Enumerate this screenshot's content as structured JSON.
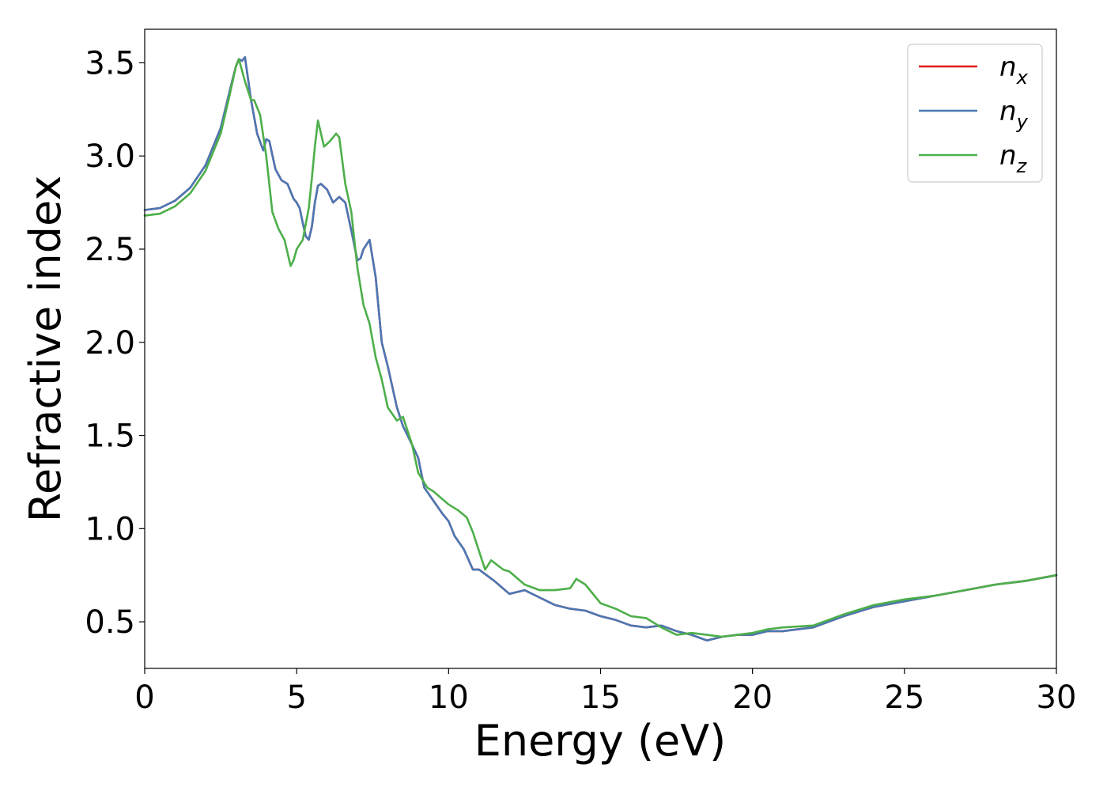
{
  "chart_data": {
    "type": "line",
    "title": "",
    "xlabel": "Energy (eV)",
    "ylabel": "Refractive index",
    "xlim": [
      0,
      30
    ],
    "ylim": [
      0.25,
      3.68
    ],
    "xticks": [
      0,
      5,
      10,
      15,
      20,
      25,
      30
    ],
    "xtick_labels": [
      "0",
      "5",
      "10",
      "15",
      "20",
      "25",
      "30"
    ],
    "yticks": [
      0.5,
      1.0,
      1.5,
      2.0,
      2.5,
      3.0,
      3.5
    ],
    "ytick_labels": [
      "0.5",
      "1.0",
      "1.5",
      "2.0",
      "2.5",
      "3.0",
      "3.5"
    ],
    "grid": false,
    "legend_position": "top-right",
    "series": [
      {
        "name": "n_x",
        "label_base": "n",
        "label_sub": "x",
        "color": "#e41a1c",
        "x": [
          0,
          0.5,
          1.0,
          1.5,
          2.0,
          2.5,
          2.8,
          3.0,
          3.1,
          3.2,
          3.3,
          3.5,
          3.7,
          3.9,
          4.0,
          4.1,
          4.3,
          4.5,
          4.7,
          4.9,
          5.0,
          5.1,
          5.2,
          5.3,
          5.4,
          5.5,
          5.6,
          5.7,
          5.8,
          6.0,
          6.2,
          6.4,
          6.6,
          6.8,
          7.0,
          7.1,
          7.2,
          7.4,
          7.6,
          7.8,
          8.0,
          8.3,
          8.5,
          8.8,
          9.0,
          9.2,
          9.5,
          9.8,
          10.0,
          10.2,
          10.5,
          10.8,
          11.0,
          11.5,
          12.0,
          12.5,
          13.0,
          13.5,
          14.0,
          14.5,
          15.0,
          15.5,
          16.0,
          16.5,
          17.0,
          17.5,
          18.0,
          18.5,
          19.0,
          19.5,
          20.0,
          20.5,
          21.0,
          22.0,
          23.0,
          24.0,
          25.0,
          26.0,
          27.0,
          28.0,
          29.0,
          30.0
        ],
        "y": [
          2.71,
          2.72,
          2.76,
          2.83,
          2.95,
          3.15,
          3.35,
          3.48,
          3.52,
          3.51,
          3.53,
          3.3,
          3.12,
          3.03,
          3.09,
          3.08,
          2.93,
          2.87,
          2.85,
          2.77,
          2.75,
          2.72,
          2.64,
          2.57,
          2.55,
          2.62,
          2.75,
          2.84,
          2.85,
          2.82,
          2.75,
          2.78,
          2.75,
          2.6,
          2.44,
          2.45,
          2.5,
          2.55,
          2.35,
          2.0,
          1.87,
          1.65,
          1.55,
          1.45,
          1.38,
          1.22,
          1.15,
          1.08,
          1.04,
          0.96,
          0.89,
          0.78,
          0.78,
          0.72,
          0.65,
          0.67,
          0.63,
          0.59,
          0.57,
          0.56,
          0.53,
          0.51,
          0.48,
          0.47,
          0.48,
          0.45,
          0.43,
          0.4,
          0.42,
          0.43,
          0.43,
          0.45,
          0.45,
          0.47,
          0.53,
          0.58,
          0.61,
          0.64,
          0.67,
          0.7,
          0.72,
          0.75
        ]
      },
      {
        "name": "n_y",
        "label_base": "n",
        "label_sub": "y",
        "color": "#4a78b4",
        "x": [
          0,
          0.5,
          1.0,
          1.5,
          2.0,
          2.5,
          2.8,
          3.0,
          3.1,
          3.2,
          3.3,
          3.5,
          3.7,
          3.9,
          4.0,
          4.1,
          4.3,
          4.5,
          4.7,
          4.9,
          5.0,
          5.1,
          5.2,
          5.3,
          5.4,
          5.5,
          5.6,
          5.7,
          5.8,
          6.0,
          6.2,
          6.4,
          6.6,
          6.8,
          7.0,
          7.1,
          7.2,
          7.4,
          7.6,
          7.8,
          8.0,
          8.3,
          8.5,
          8.8,
          9.0,
          9.2,
          9.5,
          9.8,
          10.0,
          10.2,
          10.5,
          10.8,
          11.0,
          11.5,
          12.0,
          12.5,
          13.0,
          13.5,
          14.0,
          14.5,
          15.0,
          15.5,
          16.0,
          16.5,
          17.0,
          17.5,
          18.0,
          18.5,
          19.0,
          19.5,
          20.0,
          20.5,
          21.0,
          22.0,
          23.0,
          24.0,
          25.0,
          26.0,
          27.0,
          28.0,
          29.0,
          30.0
        ],
        "y": [
          2.71,
          2.72,
          2.76,
          2.83,
          2.95,
          3.15,
          3.35,
          3.48,
          3.52,
          3.51,
          3.53,
          3.3,
          3.12,
          3.03,
          3.09,
          3.08,
          2.93,
          2.87,
          2.85,
          2.77,
          2.75,
          2.72,
          2.64,
          2.57,
          2.55,
          2.62,
          2.75,
          2.84,
          2.85,
          2.82,
          2.75,
          2.78,
          2.75,
          2.6,
          2.44,
          2.45,
          2.5,
          2.55,
          2.35,
          2.0,
          1.87,
          1.65,
          1.55,
          1.45,
          1.38,
          1.22,
          1.15,
          1.08,
          1.04,
          0.96,
          0.89,
          0.78,
          0.78,
          0.72,
          0.65,
          0.67,
          0.63,
          0.59,
          0.57,
          0.56,
          0.53,
          0.51,
          0.48,
          0.47,
          0.48,
          0.45,
          0.43,
          0.4,
          0.42,
          0.43,
          0.43,
          0.45,
          0.45,
          0.47,
          0.53,
          0.58,
          0.61,
          0.64,
          0.67,
          0.7,
          0.72,
          0.75
        ]
      },
      {
        "name": "n_z",
        "label_base": "n",
        "label_sub": "z",
        "color": "#4daf4a",
        "x": [
          0,
          0.5,
          1.0,
          1.5,
          2.0,
          2.5,
          2.8,
          3.0,
          3.1,
          3.3,
          3.5,
          3.6,
          3.8,
          4.0,
          4.2,
          4.4,
          4.6,
          4.8,
          4.9,
          5.0,
          5.2,
          5.4,
          5.5,
          5.6,
          5.7,
          5.9,
          6.1,
          6.3,
          6.4,
          6.6,
          6.8,
          7.0,
          7.2,
          7.4,
          7.6,
          7.8,
          8.0,
          8.3,
          8.5,
          8.8,
          9.0,
          9.3,
          9.5,
          10.0,
          10.3,
          10.6,
          10.8,
          11.0,
          11.2,
          11.4,
          11.8,
          12.0,
          12.5,
          13.0,
          13.5,
          14.0,
          14.2,
          14.5,
          15.0,
          15.5,
          16.0,
          16.5,
          17.0,
          17.5,
          18.0,
          18.5,
          19.0,
          19.5,
          20.0,
          20.5,
          21.0,
          22.0,
          23.0,
          24.0,
          25.0,
          26.0,
          27.0,
          28.0,
          29.0,
          30.0
        ],
        "y": [
          2.68,
          2.69,
          2.73,
          2.8,
          2.92,
          3.12,
          3.33,
          3.48,
          3.52,
          3.4,
          3.3,
          3.3,
          3.22,
          3.0,
          2.7,
          2.61,
          2.55,
          2.41,
          2.44,
          2.5,
          2.55,
          2.72,
          2.88,
          3.05,
          3.19,
          3.05,
          3.08,
          3.12,
          3.1,
          2.85,
          2.7,
          2.4,
          2.2,
          2.1,
          1.92,
          1.8,
          1.65,
          1.58,
          1.6,
          1.45,
          1.3,
          1.22,
          1.2,
          1.13,
          1.1,
          1.06,
          0.98,
          0.88,
          0.78,
          0.83,
          0.78,
          0.77,
          0.7,
          0.67,
          0.67,
          0.68,
          0.73,
          0.7,
          0.6,
          0.57,
          0.53,
          0.52,
          0.47,
          0.43,
          0.44,
          0.43,
          0.42,
          0.43,
          0.44,
          0.46,
          0.47,
          0.48,
          0.54,
          0.59,
          0.62,
          0.64,
          0.67,
          0.7,
          0.72,
          0.75
        ]
      }
    ]
  }
}
